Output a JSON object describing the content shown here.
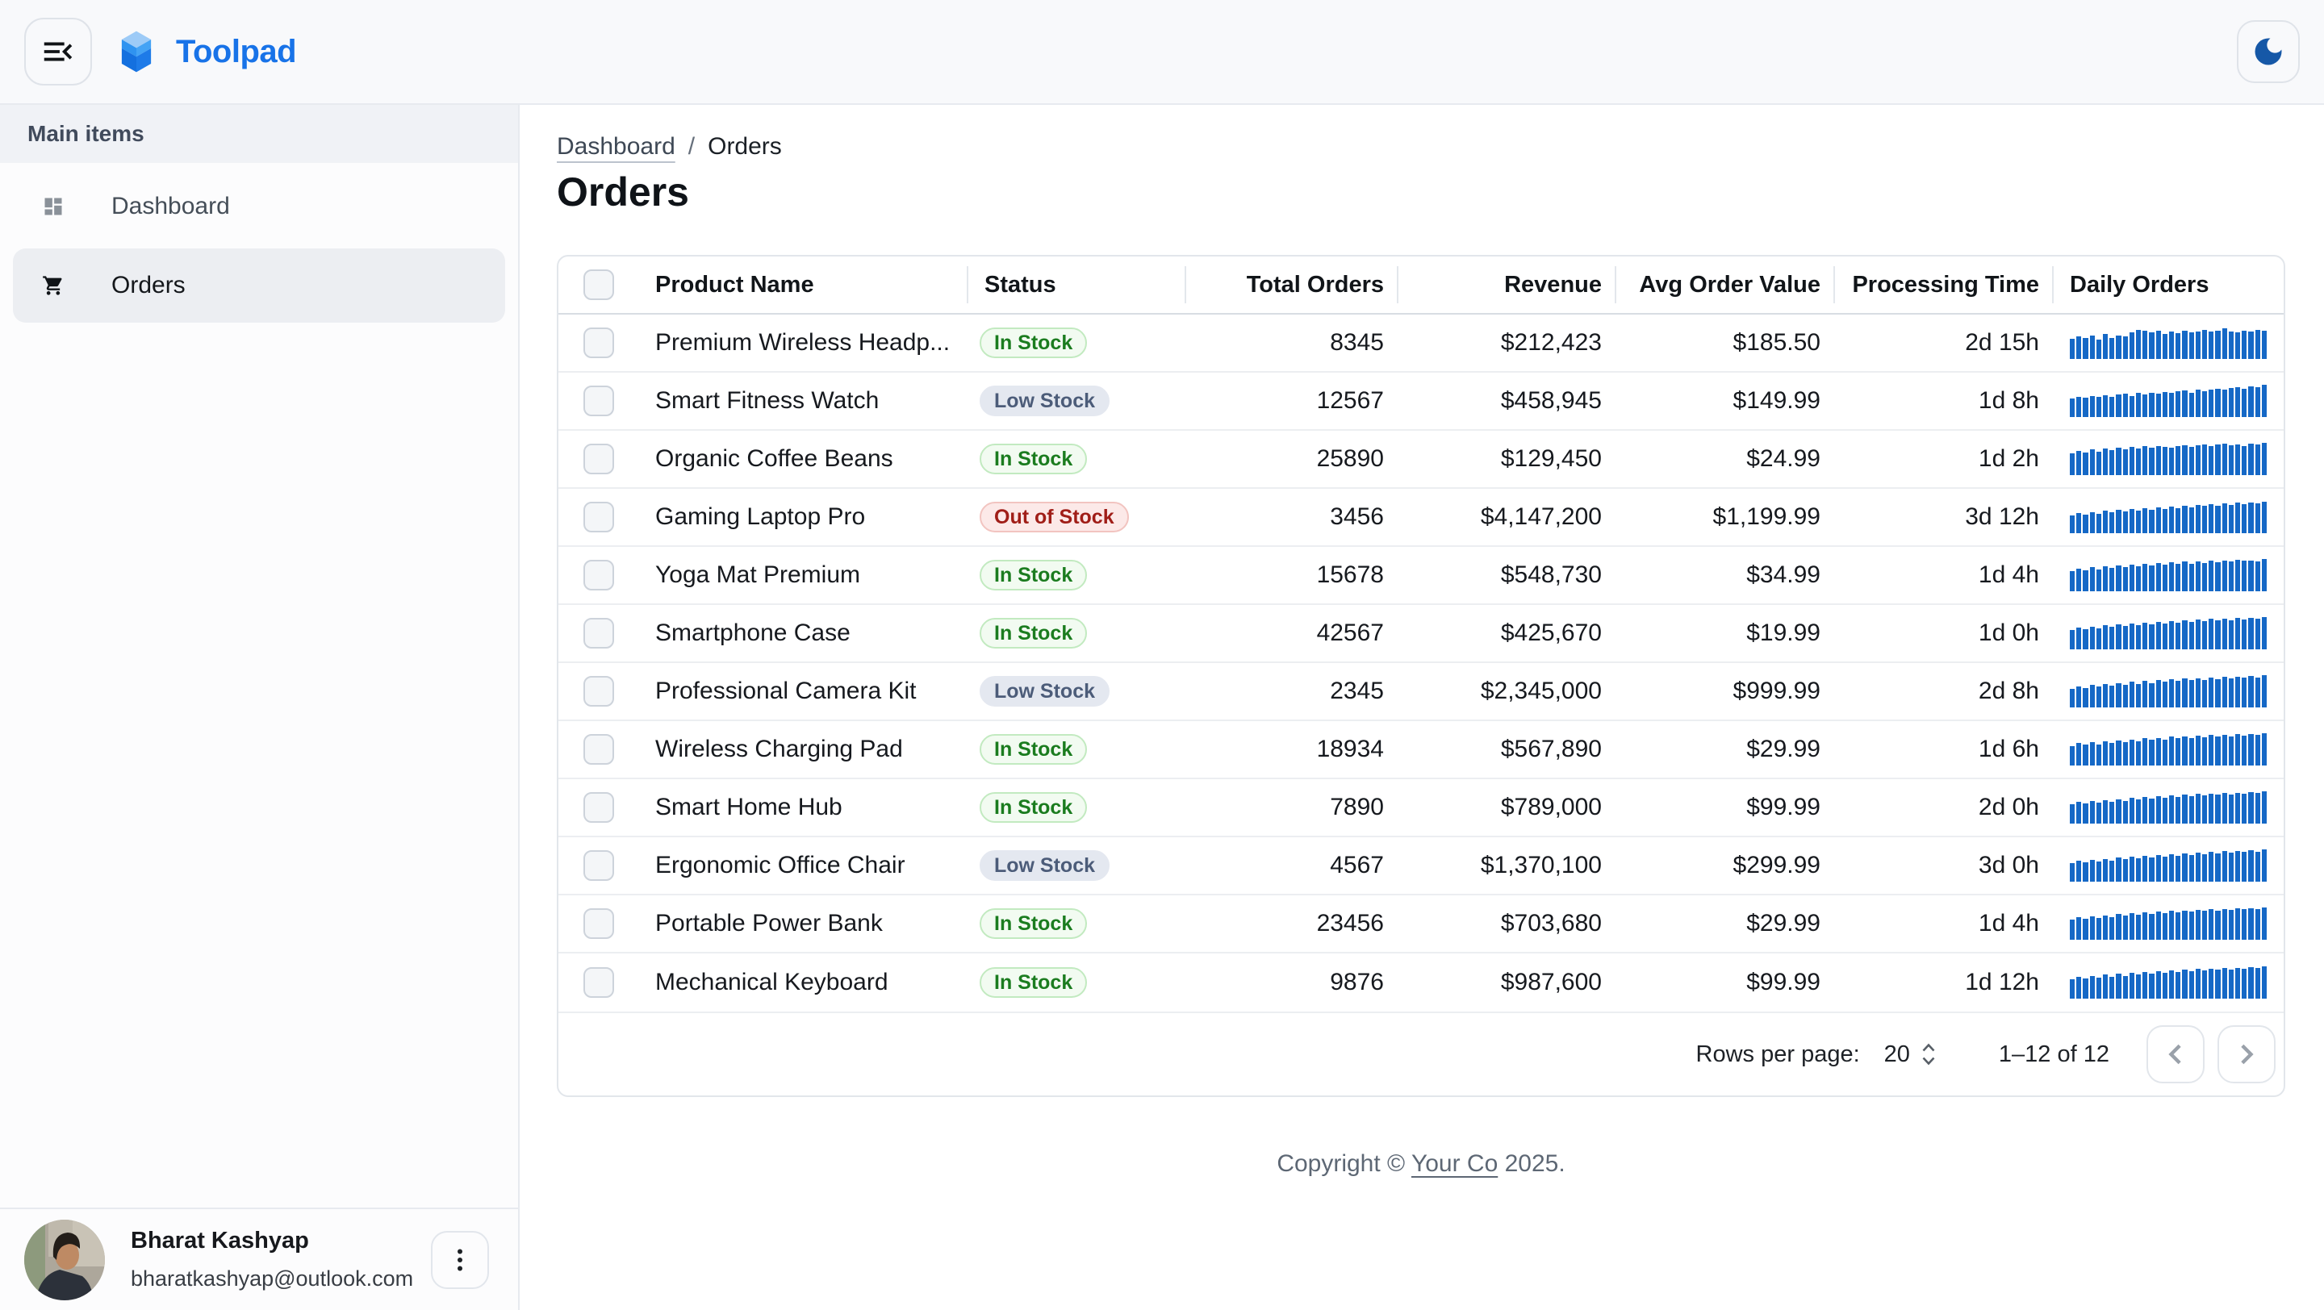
{
  "app": {
    "title": "Toolpad",
    "brand_color": "#1873E8"
  },
  "sidebar": {
    "section_label": "Main items",
    "items": [
      {
        "label": "Dashboard",
        "icon": "dashboard-icon",
        "selected": false
      },
      {
        "label": "Orders",
        "icon": "cart-icon",
        "selected": true
      }
    ]
  },
  "user": {
    "name": "Bharat Kashyap",
    "email": "bharatkashyap@outlook.com"
  },
  "breadcrumb": {
    "parent": "Dashboard",
    "separator": "/",
    "current": "Orders"
  },
  "page": {
    "title": "Orders"
  },
  "table": {
    "columns": [
      "Product Name",
      "Status",
      "Total Orders",
      "Revenue",
      "Avg Order Value",
      "Processing Time",
      "Daily Orders"
    ],
    "rows": [
      {
        "name": "Premium Wireless Headp...",
        "status": "In Stock",
        "status_type": "in_stock",
        "total_orders": "8345",
        "revenue": "$212,423",
        "avg_order_value": "$185.50",
        "processing_time": "2d 15h",
        "daily": [
          62,
          71,
          64,
          73,
          60,
          77,
          66,
          73,
          70,
          82,
          91,
          87,
          82,
          88,
          78,
          85,
          80,
          88,
          82,
          86,
          91,
          85,
          88,
          95,
          86,
          82,
          88,
          84,
          91,
          87
        ]
      },
      {
        "name": "Smart Fitness Watch",
        "status": "Low Stock",
        "status_type": "low_stock",
        "total_orders": "12567",
        "revenue": "$458,945",
        "avg_order_value": "$149.99",
        "processing_time": "1d 8h",
        "daily": [
          57,
          63,
          60,
          66,
          62,
          68,
          63,
          70,
          72,
          66,
          74,
          70,
          76,
          72,
          78,
          74,
          80,
          83,
          76,
          84,
          80,
          86,
          88,
          84,
          90,
          92,
          88,
          95,
          92,
          99
        ]
      },
      {
        "name": "Organic Coffee Beans",
        "status": "In Stock",
        "status_type": "in_stock",
        "total_orders": "25890",
        "revenue": "$129,450",
        "avg_order_value": "$24.99",
        "processing_time": "1d 2h",
        "daily": [
          68,
          75,
          70,
          79,
          73,
          82,
          77,
          84,
          79,
          87,
          83,
          90,
          85,
          91,
          87,
          84,
          90,
          93,
          88,
          92,
          96,
          90,
          94,
          98,
          92,
          96,
          91,
          98,
          94,
          100
        ]
      },
      {
        "name": "Gaming Laptop Pro",
        "status": "Out of Stock",
        "status_type": "out_of_stock",
        "total_orders": "3456",
        "revenue": "$4,147,200",
        "avg_order_value": "$1,199.99",
        "processing_time": "3d 12h",
        "daily": [
          56,
          62,
          58,
          66,
          60,
          70,
          64,
          72,
          67,
          75,
          70,
          78,
          73,
          80,
          76,
          83,
          78,
          86,
          81,
          88,
          84,
          90,
          86,
          92,
          88,
          94,
          90,
          96,
          92,
          98
        ]
      },
      {
        "name": "Yoga Mat Premium",
        "status": "In Stock",
        "status_type": "in_stock",
        "total_orders": "15678",
        "revenue": "$548,730",
        "avg_order_value": "$34.99",
        "processing_time": "1d 4h",
        "daily": [
          63,
          70,
          66,
          74,
          68,
          77,
          72,
          80,
          74,
          82,
          78,
          85,
          80,
          88,
          82,
          90,
          84,
          92,
          86,
          93,
          88,
          96,
          90,
          94,
          92,
          98,
          94,
          96,
          93,
          100
        ]
      },
      {
        "name": "Smartphone Case",
        "status": "In Stock",
        "status_type": "in_stock",
        "total_orders": "42567",
        "revenue": "$425,670",
        "avg_order_value": "$19.99",
        "processing_time": "1d 0h",
        "daily": [
          60,
          68,
          63,
          71,
          65,
          74,
          69,
          77,
          72,
          80,
          75,
          83,
          78,
          85,
          80,
          88,
          83,
          90,
          85,
          92,
          87,
          94,
          89,
          95,
          91,
          97,
          92,
          98,
          94,
          99
        ]
      },
      {
        "name": "Professional Camera Kit",
        "status": "Low Stock",
        "status_type": "low_stock",
        "total_orders": "2345",
        "revenue": "$2,345,000",
        "avg_order_value": "$999.99",
        "processing_time": "2d 8h",
        "daily": [
          58,
          66,
          61,
          70,
          64,
          73,
          67,
          76,
          70,
          79,
          73,
          82,
          76,
          84,
          79,
          87,
          82,
          89,
          84,
          91,
          86,
          93,
          88,
          94,
          90,
          96,
          92,
          97,
          93,
          99
        ]
      },
      {
        "name": "Wireless Charging Pad",
        "status": "In Stock",
        "status_type": "in_stock",
        "total_orders": "18934",
        "revenue": "$567,890",
        "avg_order_value": "$29.99",
        "processing_time": "1d 6h",
        "daily": [
          61,
          69,
          64,
          72,
          66,
          75,
          70,
          78,
          73,
          81,
          76,
          84,
          79,
          86,
          81,
          89,
          84,
          91,
          86,
          93,
          88,
          94,
          90,
          96,
          91,
          97,
          93,
          98,
          95,
          100
        ]
      },
      {
        "name": "Smart Home Hub",
        "status": "In Stock",
        "status_type": "in_stock",
        "total_orders": "7890",
        "revenue": "$789,000",
        "avg_order_value": "$99.99",
        "processing_time": "2d 0h",
        "daily": [
          59,
          67,
          62,
          70,
          65,
          73,
          68,
          76,
          71,
          79,
          74,
          82,
          77,
          85,
          80,
          87,
          82,
          90,
          85,
          92,
          87,
          93,
          89,
          95,
          91,
          96,
          92,
          98,
          94,
          99
        ]
      },
      {
        "name": "Ergonomic Office Chair",
        "status": "Low Stock",
        "status_type": "low_stock",
        "total_orders": "4567",
        "revenue": "$1,370,100",
        "avg_order_value": "$299.99",
        "processing_time": "3d 0h",
        "daily": [
          57,
          65,
          60,
          68,
          63,
          71,
          66,
          74,
          69,
          77,
          72,
          80,
          75,
          83,
          78,
          86,
          81,
          88,
          83,
          90,
          86,
          92,
          88,
          94,
          90,
          95,
          92,
          97,
          93,
          99
        ]
      },
      {
        "name": "Portable Power Bank",
        "status": "In Stock",
        "status_type": "in_stock",
        "total_orders": "23456",
        "revenue": "$703,680",
        "avg_order_value": "$29.99",
        "processing_time": "1d 4h",
        "daily": [
          62,
          70,
          65,
          73,
          67,
          76,
          71,
          79,
          74,
          82,
          77,
          84,
          80,
          87,
          82,
          89,
          85,
          91,
          87,
          93,
          89,
          95,
          90,
          96,
          92,
          97,
          94,
          98,
          95,
          100
        ]
      },
      {
        "name": "Mechanical Keyboard",
        "status": "In Stock",
        "status_type": "in_stock",
        "total_orders": "9876",
        "revenue": "$987,600",
        "avg_order_value": "$99.99",
        "processing_time": "1d 12h",
        "daily": [
          60,
          68,
          62,
          71,
          65,
          74,
          68,
          77,
          71,
          80,
          74,
          83,
          77,
          85,
          80,
          88,
          82,
          90,
          85,
          92,
          87,
          93,
          89,
          95,
          91,
          96,
          93,
          98,
          94,
          99
        ]
      }
    ],
    "footer": {
      "rows_per_page_label": "Rows per page:",
      "rows_per_page": "20",
      "range": "1–12 of 12"
    }
  },
  "footer": {
    "copyright_prefix": "Copyright © ",
    "company": "Your Co",
    "suffix": " 2025."
  },
  "colors": {
    "sparkline": "#1568C6",
    "in_stock_text": "#1B7C1F",
    "low_stock_text": "#4C5C79",
    "out_of_stock_text": "#A01E18"
  }
}
